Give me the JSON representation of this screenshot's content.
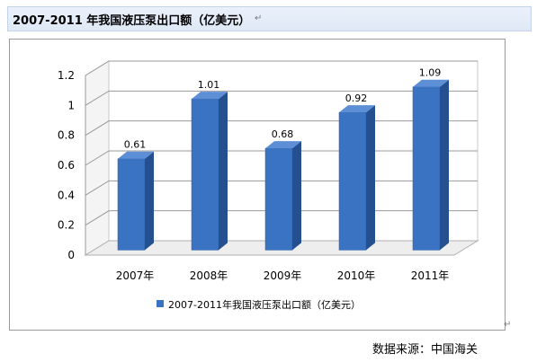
{
  "header": {
    "title": "2007-2011 年我国液压泵出口额（亿美元）"
  },
  "marks": {
    "paragraph": "↵",
    "corner": "↵"
  },
  "source": "数据来源：中国海关",
  "chart_data": {
    "type": "bar",
    "categories": [
      "2007年",
      "2008年",
      "2009年",
      "2010年",
      "2011年"
    ],
    "series": [
      {
        "name": "2007-2011年我国液压泵出口额（亿美元）",
        "values": [
          0.61,
          1.01,
          0.68,
          0.92,
          1.09
        ]
      }
    ],
    "data_labels": [
      "0.61",
      "1.01",
      "0.68",
      "0.92",
      "1.09"
    ],
    "y_ticks": [
      "0",
      "0.2",
      "0.4",
      "0.6",
      "0.8",
      "1",
      "1.2"
    ],
    "ylim": [
      0,
      1.2
    ],
    "grid": true,
    "legend": "bottom",
    "colors": {
      "bar_front": "#3a73c2",
      "bar_side": "#24508f",
      "bar_top": "#5d8fd6"
    }
  }
}
